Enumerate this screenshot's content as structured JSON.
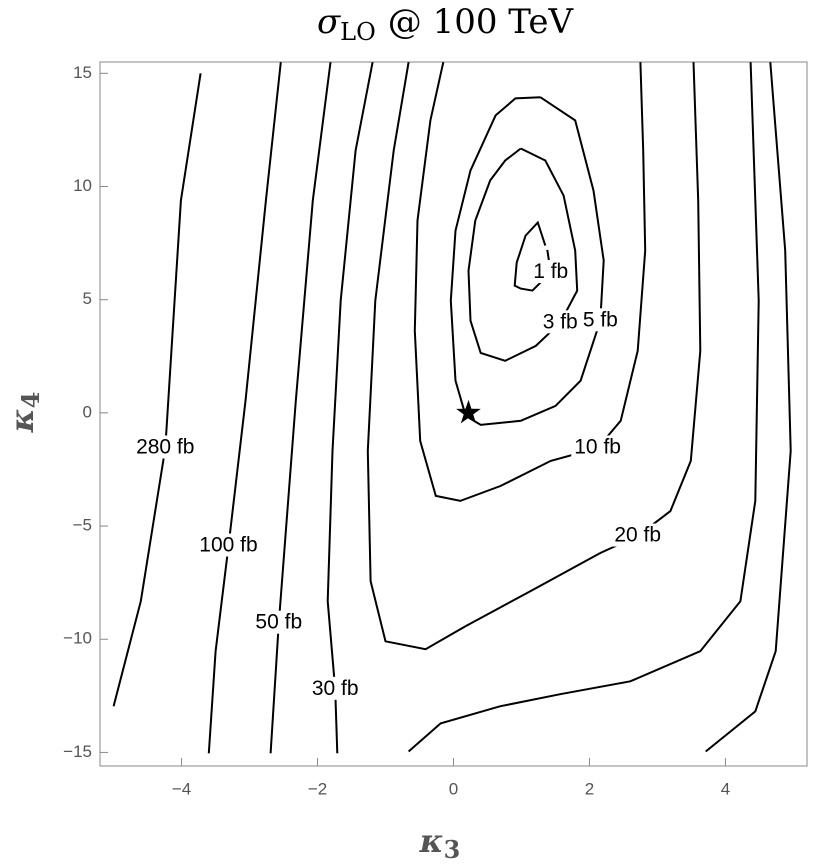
{
  "chart_data": {
    "type": "contour",
    "title": {
      "symbol": "σ",
      "subscript": "LO",
      "text": "@ 100 TeV"
    },
    "x_label": {
      "symbol": "κ",
      "subscript": "3"
    },
    "y_label": {
      "symbol": "κ",
      "subscript": "4"
    },
    "xlim": [
      -5.2,
      5.2
    ],
    "ylim": [
      -15.6,
      15.5
    ],
    "xticks": [
      {
        "value": -4,
        "label": "−4"
      },
      {
        "value": -2,
        "label": "−2"
      },
      0,
      2,
      4
    ],
    "yticks": [
      {
        "value": -15,
        "label": "−15"
      },
      {
        "value": -10,
        "label": "−10"
      },
      {
        "value": -5,
        "label": "−5"
      },
      0,
      5,
      10,
      15
    ],
    "color": "#000000",
    "series": [
      {
        "name": "1 fb",
        "x": [
          1.35,
          1.24,
          1.06,
          0.93,
          0.9,
          0.99,
          1.16,
          1.43,
          1.38
        ],
        "y": [
          7.39,
          8.41,
          7.83,
          6.64,
          5.62,
          5.49,
          5.4,
          6.2,
          7.2
        ]
      },
      {
        "name": "3 fb",
        "x": [
          0.99,
          1.35,
          1.62,
          1.79,
          1.82,
          1.57,
          1.21,
          0.76,
          0.4,
          0.25,
          0.22,
          0.32,
          0.54,
          0.76,
          0.99
        ],
        "y": [
          11.68,
          11.15,
          9.6,
          7.17,
          5.4,
          3.98,
          2.96,
          2.3,
          2.65,
          4.07,
          6.28,
          8.5,
          10.27,
          11.15,
          11.68
        ]
      },
      {
        "name": "5 fb",
        "x": [
          1.28,
          1.79,
          2.06,
          2.21,
          2.16,
          1.87,
          1.5,
          0.99,
          0.4,
          0.18,
          0.03,
          -0.04,
          0.03,
          0.25,
          0.62,
          0.91,
          1.28
        ],
        "y": [
          13.94,
          12.92,
          9.82,
          6.73,
          4.07,
          1.42,
          0.31,
          -0.35,
          -0.53,
          -0.13,
          1.42,
          4.96,
          8.05,
          10.71,
          13.14,
          13.89,
          13.94
        ]
      },
      {
        "name": "10 fb",
        "x": [
          -0.15,
          -0.34,
          -0.53,
          -0.57,
          -0.49,
          -0.26,
          0.1,
          0.69,
          1.43,
          2.12,
          2.46,
          2.71,
          2.82,
          2.79,
          2.75
        ],
        "y": [
          15.49,
          12.92,
          8.5,
          3.63,
          -1.24,
          -3.67,
          -3.89,
          -3.23,
          -2.12,
          -1.55,
          -0.35,
          2.74,
          7.17,
          11.59,
          15.49
        ]
      },
      {
        "name": "20 fb",
        "x": [
          -0.66,
          -0.88,
          -1.15,
          -1.26,
          -1.22,
          -1.0,
          -0.41,
          0.18,
          1.13,
          2.16,
          2.71,
          3.19,
          3.49,
          3.63,
          3.6,
          3.53
        ],
        "y": [
          15.49,
          11.59,
          4.96,
          -1.68,
          -7.43,
          -10.09,
          -10.44,
          -9.42,
          -7.88,
          -6.19,
          -5.44,
          -4.34,
          -2.12,
          2.74,
          9.38,
          15.49
        ]
      },
      {
        "name": "30 fb",
        "x": [
          -1.19,
          -1.44,
          -1.66,
          -1.78,
          -1.85,
          -1.74,
          -1.71,
          null,
          -0.66,
          -0.19,
          0.69,
          1.57,
          2.6,
          3.63,
          4.22,
          4.44,
          4.49,
          4.37
        ],
        "y": [
          15.49,
          11.59,
          4.96,
          -1.68,
          -8.32,
          -12.21,
          -15.04,
          null,
          -14.96,
          -13.72,
          -12.96,
          -12.43,
          -11.86,
          -10.53,
          -8.32,
          -3.89,
          4.96,
          15.49
        ]
      },
      {
        "name": "50 fb",
        "x": [
          -1.81,
          -2.07,
          -2.32,
          -2.57,
          -2.69,
          null,
          3.71,
          4.44,
          4.74,
          4.96,
          4.88,
          4.66
        ],
        "y": [
          15.49,
          9.38,
          0.53,
          -9.29,
          -15.04,
          null,
          -14.96,
          -13.19,
          -10.53,
          -1.68,
          7.17,
          15.49
        ]
      },
      {
        "name": "100 fb",
        "x": [
          -2.54,
          -2.76,
          -3.06,
          -3.31,
          -3.5,
          -3.6
        ],
        "y": [
          15.49,
          9.38,
          0.53,
          -5.88,
          -10.53,
          -15.04
        ]
      },
      {
        "name": "280 fb",
        "x": [
          -3.72,
          -4.01,
          -4.24,
          -4.6,
          -5.0
        ],
        "y": [
          15.0,
          9.38,
          -1.55,
          -8.32,
          -12.96
        ]
      }
    ],
    "markers": [
      {
        "x": 0.22,
        "y": 0
      }
    ]
  }
}
